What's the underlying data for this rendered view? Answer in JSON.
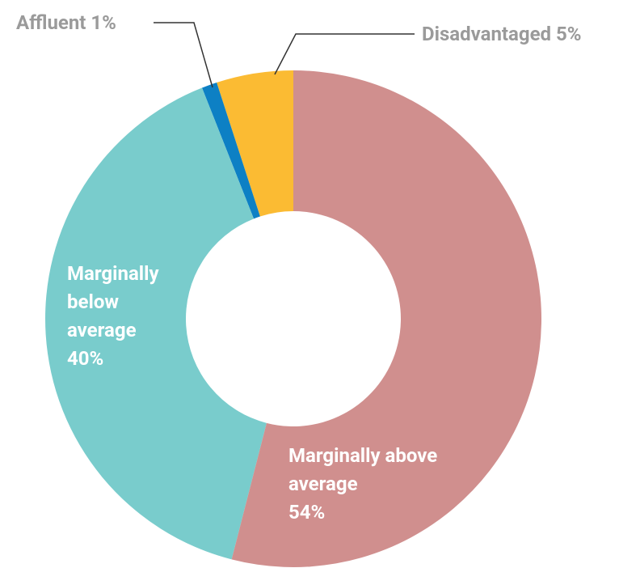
{
  "chart_data": {
    "type": "donut",
    "categories": [
      "Marginally above average",
      "Marginally below average",
      "Affluent",
      "Disadvantaged"
    ],
    "values": [
      54,
      40,
      1,
      5
    ],
    "value_labels": [
      "54%",
      "40%",
      "1%",
      "5%"
    ],
    "colors": [
      "#d08f8e",
      "#79cccc",
      "#0d80c4",
      "#fbbb33"
    ]
  }
}
